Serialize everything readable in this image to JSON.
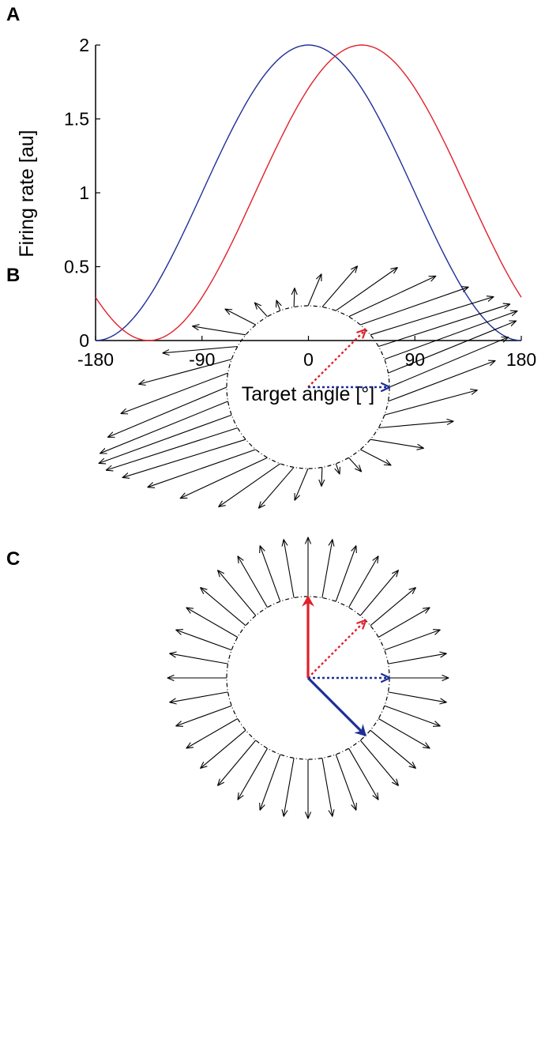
{
  "panels": {
    "a": "A",
    "b": "B",
    "c": "C"
  },
  "chart_data": [
    {
      "type": "line",
      "panel": "A",
      "xlabel": "Target angle [°]",
      "ylabel": "Firing rate [au]",
      "xlim": [
        -180,
        180
      ],
      "ylim": [
        0,
        2
      ],
      "xticks": [
        -180,
        -90,
        0,
        90,
        180
      ],
      "xtick_labels": [
        "-180",
        "-90",
        "0",
        "90",
        "180"
      ],
      "yticks": [
        0,
        0.5,
        1,
        1.5,
        2
      ],
      "ytick_labels": [
        "0",
        "0.5",
        "1",
        "1.5",
        "2"
      ],
      "grid": false,
      "series": [
        {
          "color": "#1f2f96",
          "preferred_direction_deg": 0,
          "baseline": 1,
          "modulation_depth": 1,
          "x": [
            -180,
            -160,
            -140,
            -120,
            -100,
            -80,
            -60,
            -40,
            -20,
            0,
            20,
            40,
            60,
            80,
            100,
            120,
            140,
            160,
            180
          ],
          "values": [
            0,
            0.06,
            0.23,
            0.5,
            0.83,
            1.17,
            1.5,
            1.77,
            1.94,
            2,
            1.94,
            1.77,
            1.5,
            1.17,
            0.83,
            0.5,
            0.23,
            0.06,
            0
          ]
        },
        {
          "color": "#e0212b",
          "preferred_direction_deg": 45,
          "baseline": 1,
          "modulation_depth": 1,
          "x": [
            -180,
            -160,
            -140,
            -120,
            -100,
            -80,
            -60,
            -40,
            -20,
            0,
            20,
            40,
            60,
            80,
            100,
            120,
            140,
            160,
            180
          ],
          "values": [
            0.29,
            0.09,
            0.0,
            0.03,
            0.18,
            0.43,
            0.74,
            1.09,
            1.42,
            1.71,
            1.91,
            2.0,
            1.97,
            1.82,
            1.57,
            1.26,
            0.91,
            0.58,
            0.29
          ]
        }
      ]
    },
    {
      "type": "vector-field",
      "panel": "B",
      "n_targets": 36,
      "circle_radius": 1,
      "population_vectors": "elongated along the 20° axis",
      "preferred_direction_vectors": [
        {
          "color": "#e0212b",
          "angle_deg": 45,
          "style": "dotted"
        },
        {
          "color": "#1f2f96",
          "angle_deg": 0,
          "style": "dotted"
        }
      ]
    },
    {
      "type": "vector-field",
      "panel": "C",
      "n_targets": 36,
      "circle_radius": 1,
      "population_vectors": "uniform radial",
      "preferred_direction_vectors": [
        {
          "color": "#e0212b",
          "angle_deg": 45,
          "style": "dotted"
        },
        {
          "color": "#1f2f96",
          "angle_deg": 0,
          "style": "dotted"
        }
      ],
      "result_vectors": [
        {
          "color": "#e0212b",
          "angle_deg": 90,
          "style": "solid"
        },
        {
          "color": "#1f2f96",
          "angle_deg": -45,
          "style": "solid"
        }
      ]
    }
  ]
}
